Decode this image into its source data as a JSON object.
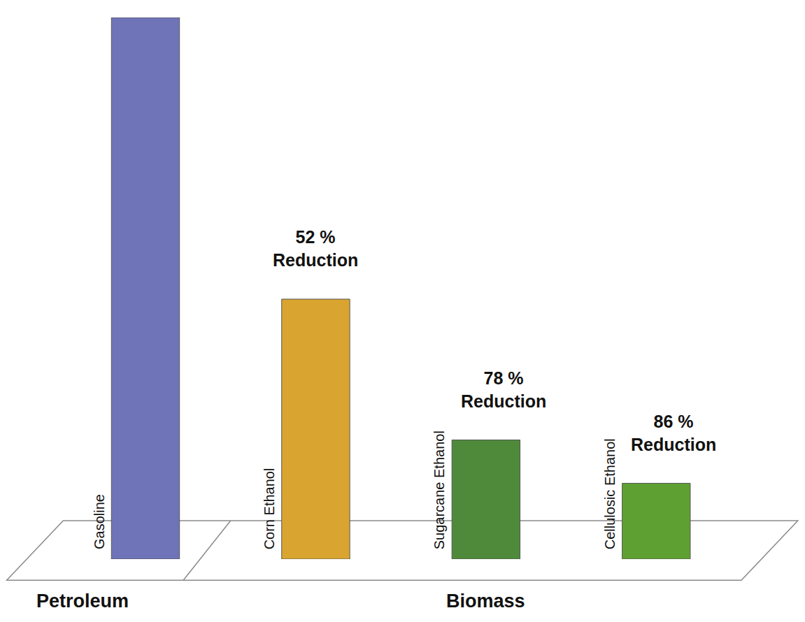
{
  "chart_data": {
    "type": "bar",
    "categories": [
      "Gasoline",
      "Corn Ethanol",
      "Sugarcane Ethanol",
      "Cellulosic Ethanol"
    ],
    "values": [
      100,
      48,
      22,
      14
    ],
    "colors": [
      "#6f73b8",
      "#d9a530",
      "#4e8a3a",
      "#5fa032"
    ],
    "ylim": [
      0,
      100
    ],
    "yticks": [],
    "tick_labels": false,
    "grid": false,
    "annotations": [
      {
        "category": "Corn Ethanol",
        "text": "52 % Reduction"
      },
      {
        "category": "Sugarcane Ethanol",
        "text": "78 % Reduction"
      },
      {
        "category": "Cellulosic Ethanol",
        "text": "86 % Reduction"
      }
    ],
    "groups": [
      {
        "label": "Petroleum",
        "categories": [
          "Gasoline"
        ]
      },
      {
        "label": "Biomass",
        "categories": [
          "Corn Ethanol",
          "Sugarcane Ethanol",
          "Cellulosic Ethanol"
        ]
      }
    ]
  }
}
